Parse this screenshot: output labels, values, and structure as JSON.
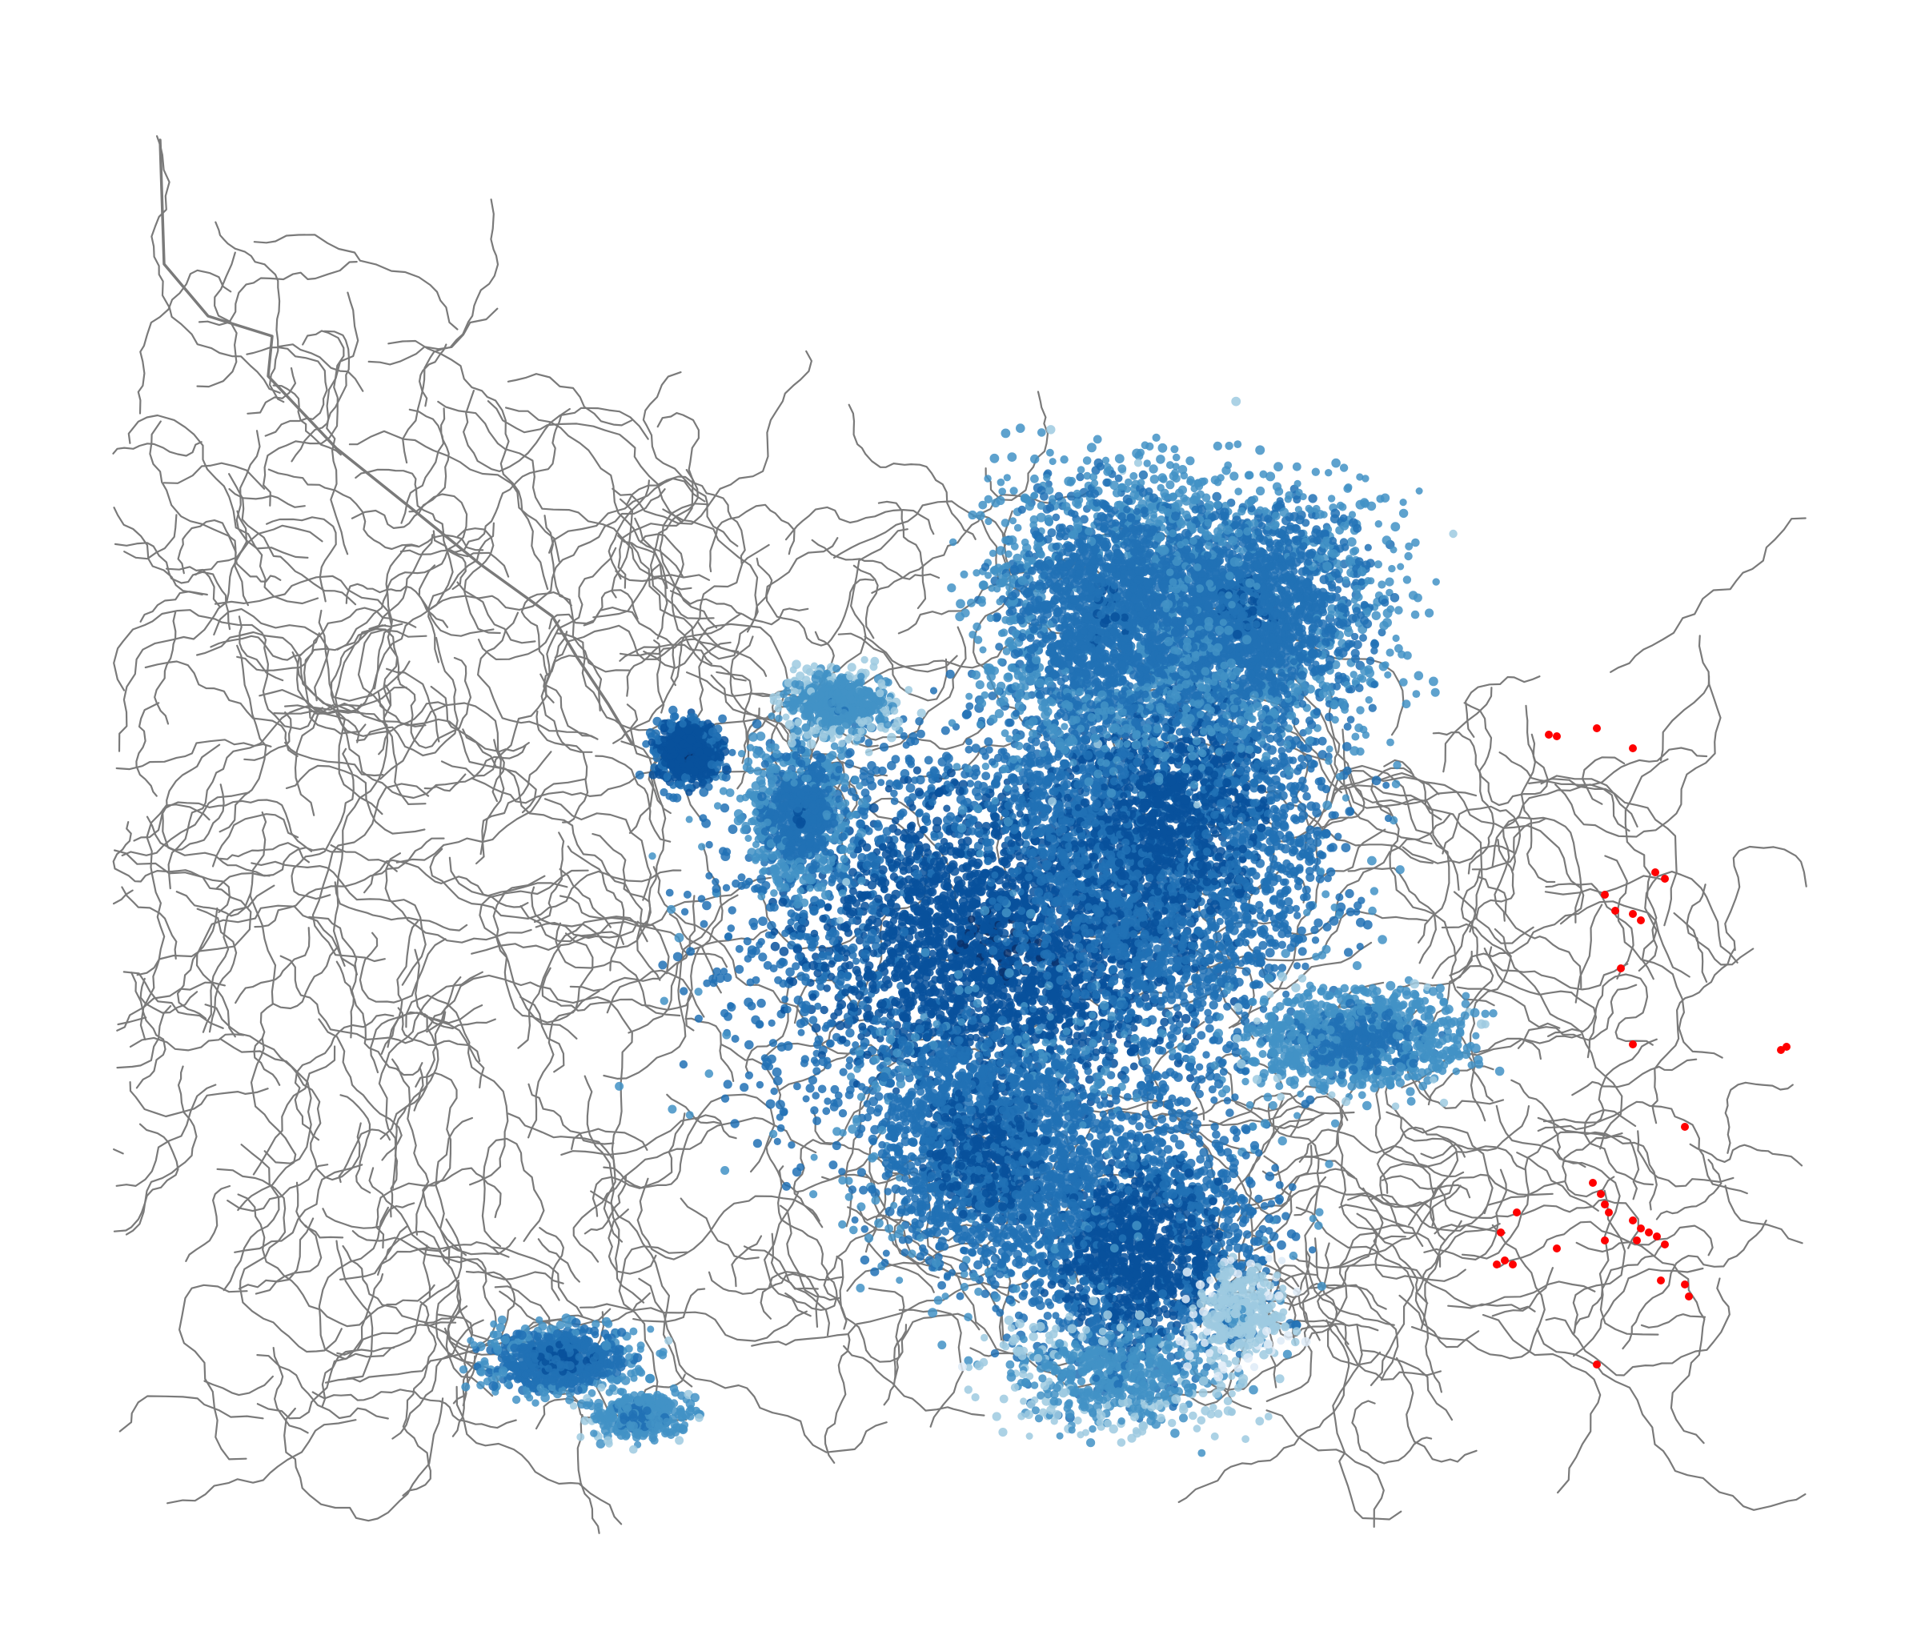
{
  "map": {
    "background_color": "#ffffff",
    "road_color": "#7a7a7a",
    "palette": {
      "very_light_blue": "#deebf7",
      "light_blue": "#9ecae1",
      "mid_blue": "#4292c6",
      "blue": "#2171b5",
      "dark_blue": "#08519c",
      "darkest_blue": "#08306b"
    },
    "unreached_marker_color": "#ff0000",
    "layers": [
      "road-network",
      "reachable-nodes-gradient",
      "unreached-nodes-red"
    ]
  }
}
